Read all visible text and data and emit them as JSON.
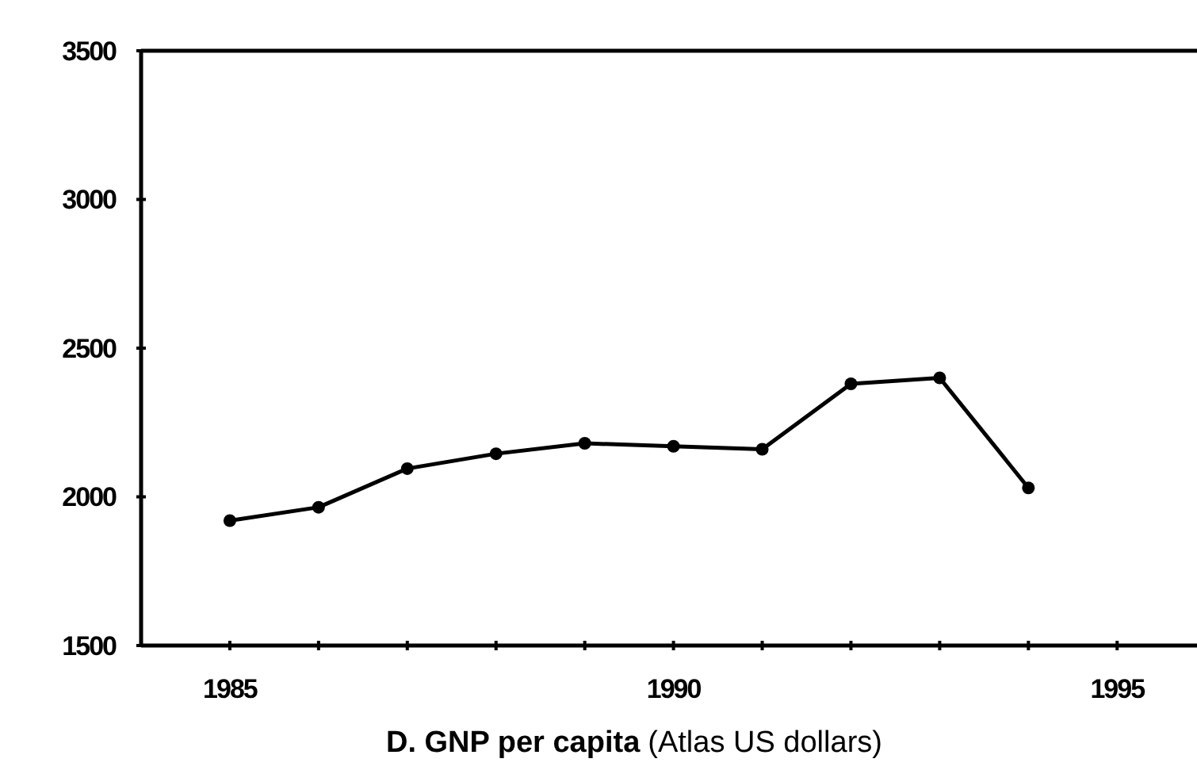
{
  "chart_data": {
    "type": "line",
    "title": "D. GNP per capita",
    "subtitle": "(Atlas US dollars)",
    "x": [
      1985,
      1986,
      1987,
      1988,
      1989,
      1990,
      1991,
      1992,
      1993,
      1994
    ],
    "series": [
      {
        "color": "#000000",
        "values": [
          1920,
          1965,
          2095,
          2145,
          2180,
          2170,
          2160,
          2380,
          2400,
          2030
        ]
      }
    ],
    "xlim": [
      1984,
      1995.9
    ],
    "xticks": [
      1985,
      {
        "value": 1986,
        "label": null
      },
      {
        "value": 1987,
        "label": null
      },
      {
        "value": 1988,
        "label": null
      },
      {
        "value": 1989,
        "label": null
      },
      1990,
      {
        "value": 1991,
        "label": null
      },
      {
        "value": 1992,
        "label": null
      },
      {
        "value": 1993,
        "label": null
      },
      {
        "value": 1994,
        "label": null
      },
      1995
    ],
    "ylim": [
      1500,
      3500
    ],
    "yticks": [
      1500,
      2000,
      2500,
      3000,
      3500
    ],
    "marker": "circle",
    "line_style": "solid",
    "grid": false
  }
}
